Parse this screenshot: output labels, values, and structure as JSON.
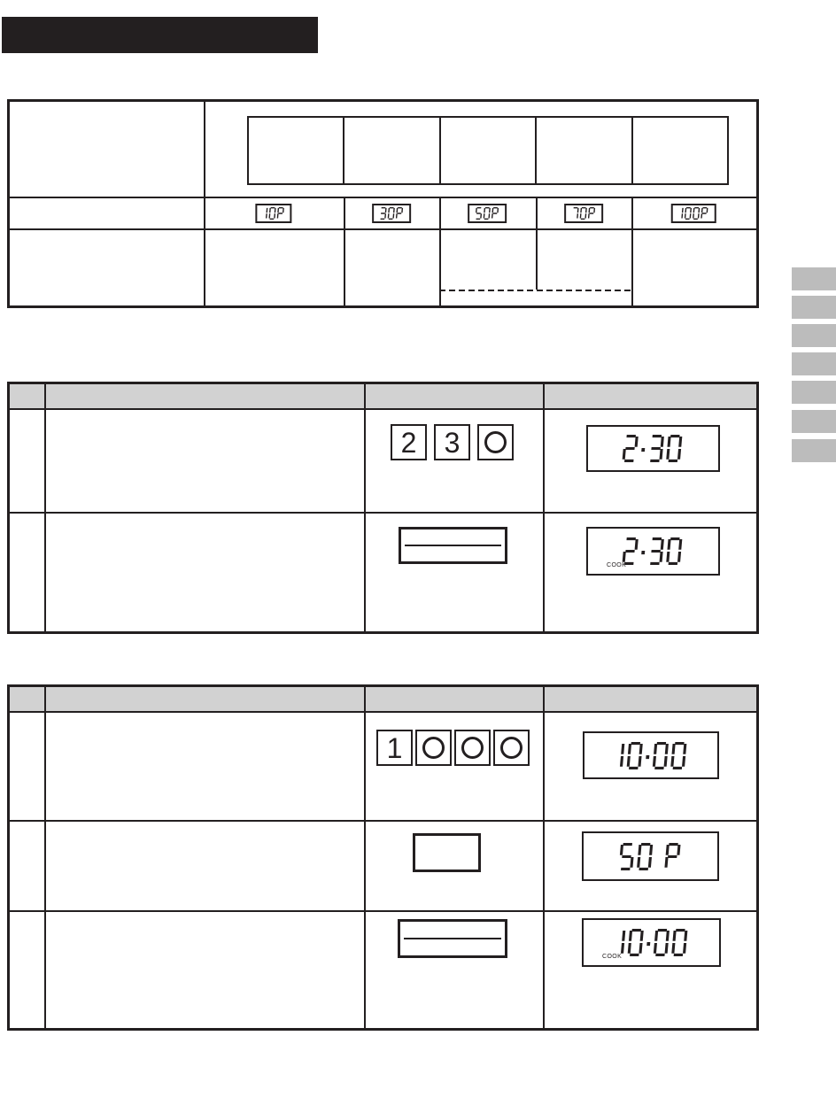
{
  "colors": {
    "ink": "#231f20",
    "header_gray": "#d2d2d2",
    "tab_gray": "#bcbcbc",
    "paper": "#ffffff"
  },
  "title_block": {
    "text": "",
    "style": "solid-black-bar"
  },
  "power_table": {
    "header_cell_count": 5,
    "power_displays": [
      "10P",
      "30P",
      "50P",
      "70P",
      "100P"
    ],
    "dashed_divider": "between 50P and 70P note cells"
  },
  "side_tabs": {
    "count": 7
  },
  "steps_table_a": {
    "header_labels": [
      "",
      "",
      "",
      ""
    ],
    "rows": [
      {
        "step_keys": [
          {
            "label": "2"
          },
          {
            "label": "3"
          },
          {
            "label": "0",
            "glyph": "circle"
          }
        ],
        "display": {
          "segments": "2:30",
          "indicator": ""
        }
      },
      {
        "control": "start-bar-button",
        "display": {
          "segments": "2:30",
          "indicator": "COOK"
        }
      }
    ]
  },
  "steps_table_b": {
    "header_labels": [
      "",
      "",
      "",
      ""
    ],
    "rows": [
      {
        "step_keys": [
          {
            "label": "1"
          },
          {
            "label": "0",
            "glyph": "circle"
          },
          {
            "label": "0",
            "glyph": "circle"
          },
          {
            "label": "0",
            "glyph": "circle"
          }
        ],
        "display": {
          "segments": "10:00",
          "indicator": ""
        }
      },
      {
        "control": "power-level-button",
        "display": {
          "segments": "50 P",
          "indicator": ""
        }
      },
      {
        "control": "start-bar-button",
        "display": {
          "segments": "10:00",
          "indicator": "COOK"
        }
      }
    ]
  }
}
